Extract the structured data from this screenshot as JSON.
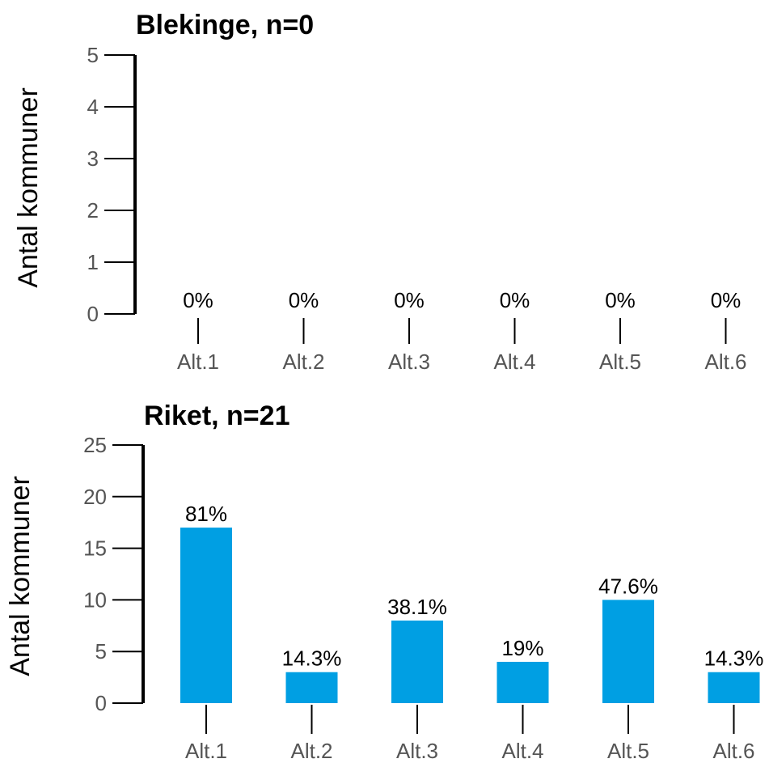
{
  "chart_data": [
    {
      "type": "bar",
      "title": "Blekinge, n=0",
      "ylabel": "Antal kommuner",
      "categories": [
        "Alt.1",
        "Alt.2",
        "Alt.3",
        "Alt.4",
        "Alt.5",
        "Alt.6"
      ],
      "values": [
        0,
        0,
        0,
        0,
        0,
        0
      ],
      "data_labels": [
        "0%",
        "0%",
        "0%",
        "0%",
        "0%",
        "0%"
      ],
      "yticks": [
        0,
        1,
        2,
        3,
        4,
        5
      ],
      "ylim": [
        0,
        5
      ],
      "grid": false,
      "color": "#009FE3"
    },
    {
      "type": "bar",
      "title": "Riket, n=21",
      "ylabel": "Antal kommuner",
      "categories": [
        "Alt.1",
        "Alt.2",
        "Alt.3",
        "Alt.4",
        "Alt.5",
        "Alt.6"
      ],
      "values": [
        17,
        3,
        8,
        4,
        10,
        3
      ],
      "data_labels": [
        "81%",
        "14.3%",
        "38.1%",
        "19%",
        "47.6%",
        "14.3%"
      ],
      "yticks": [
        0,
        5,
        10,
        15,
        20,
        25
      ],
      "ylim": [
        0,
        25
      ],
      "grid": false,
      "color": "#009FE3"
    }
  ]
}
